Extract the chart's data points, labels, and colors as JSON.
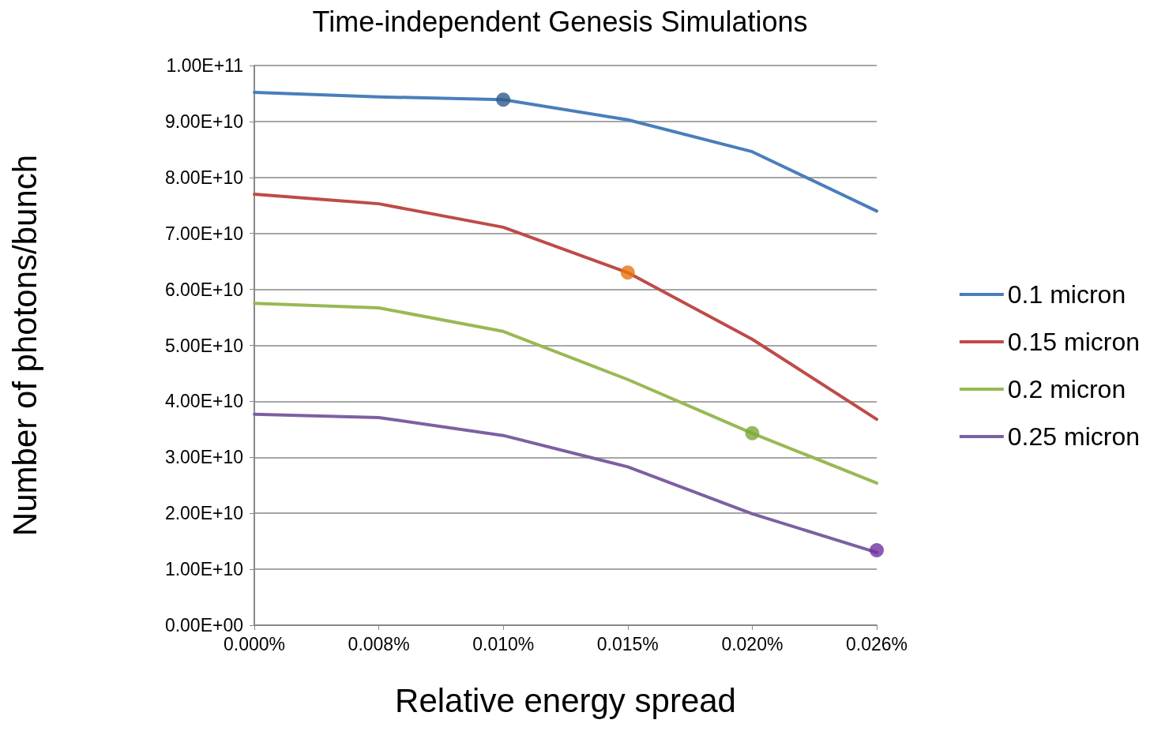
{
  "chart_data": {
    "type": "line",
    "title": "Time-independent Genesis Simulations",
    "xlabel": "Relative energy spread",
    "ylabel": "Number of photons/bunch",
    "categories": [
      "0.000%",
      "0.008%",
      "0.010%",
      "0.015%",
      "0.020%",
      "0.026%"
    ],
    "series": [
      {
        "name": "0.1 micron",
        "color": "#4a7ebb",
        "values": [
          95200000000.0,
          94400000000.0,
          93900000000.0,
          90300000000.0,
          84600000000.0,
          74000000000.0
        ]
      },
      {
        "name": "0.15 micron",
        "color": "#be4b48",
        "values": [
          77000000000.0,
          75300000000.0,
          71100000000.0,
          63000000000.0,
          51100000000.0,
          36800000000.0
        ]
      },
      {
        "name": "0.2 micron",
        "color": "#98b954",
        "values": [
          57500000000.0,
          56700000000.0,
          52500000000.0,
          43900000000.0,
          34300000000.0,
          25400000000.0
        ]
      },
      {
        "name": "0.25 micron",
        "color": "#7d60a0",
        "values": [
          37700000000.0,
          37100000000.0,
          33900000000.0,
          28300000000.0,
          19900000000.0,
          13000000000.0
        ]
      },
      {
        "type": "scatter",
        "marker": "circle",
        "color": "#2f5b8f",
        "x": [
          "0.010%"
        ],
        "values": [
          93900000000.0
        ]
      },
      {
        "type": "scatter",
        "marker": "circle",
        "color": "#e8730f",
        "x": [
          "0.015%"
        ],
        "values": [
          63000000000.0
        ]
      },
      {
        "type": "scatter",
        "marker": "circle",
        "color": "#7aa83a",
        "x": [
          "0.020%"
        ],
        "values": [
          34300000000.0
        ]
      },
      {
        "type": "scatter",
        "marker": "circle",
        "color": "#7030a0",
        "x": [
          "0.026%"
        ],
        "values": [
          13400000000.0
        ]
      }
    ],
    "ylim": [
      0,
      100000000000.0
    ],
    "yticks": [
      {
        "value": 0,
        "label": "0.00E+00"
      },
      {
        "value": 10000000000.0,
        "label": "1.00E+10"
      },
      {
        "value": 20000000000.0,
        "label": "2.00E+10"
      },
      {
        "value": 30000000000.0,
        "label": "3.00E+10"
      },
      {
        "value": 40000000000.0,
        "label": "4.00E+10"
      },
      {
        "value": 50000000000.0,
        "label": "5.00E+10"
      },
      {
        "value": 60000000000.0,
        "label": "6.00E+10"
      },
      {
        "value": 70000000000.0,
        "label": "7.00E+10"
      },
      {
        "value": 80000000000.0,
        "label": "8.00E+10"
      },
      {
        "value": 90000000000.0,
        "label": "9.00E+10"
      },
      {
        "value": 100000000000.0,
        "label": "1.00E+11"
      }
    ],
    "grid": "y",
    "legend": "right",
    "marker": "none",
    "line_style": "solid"
  }
}
